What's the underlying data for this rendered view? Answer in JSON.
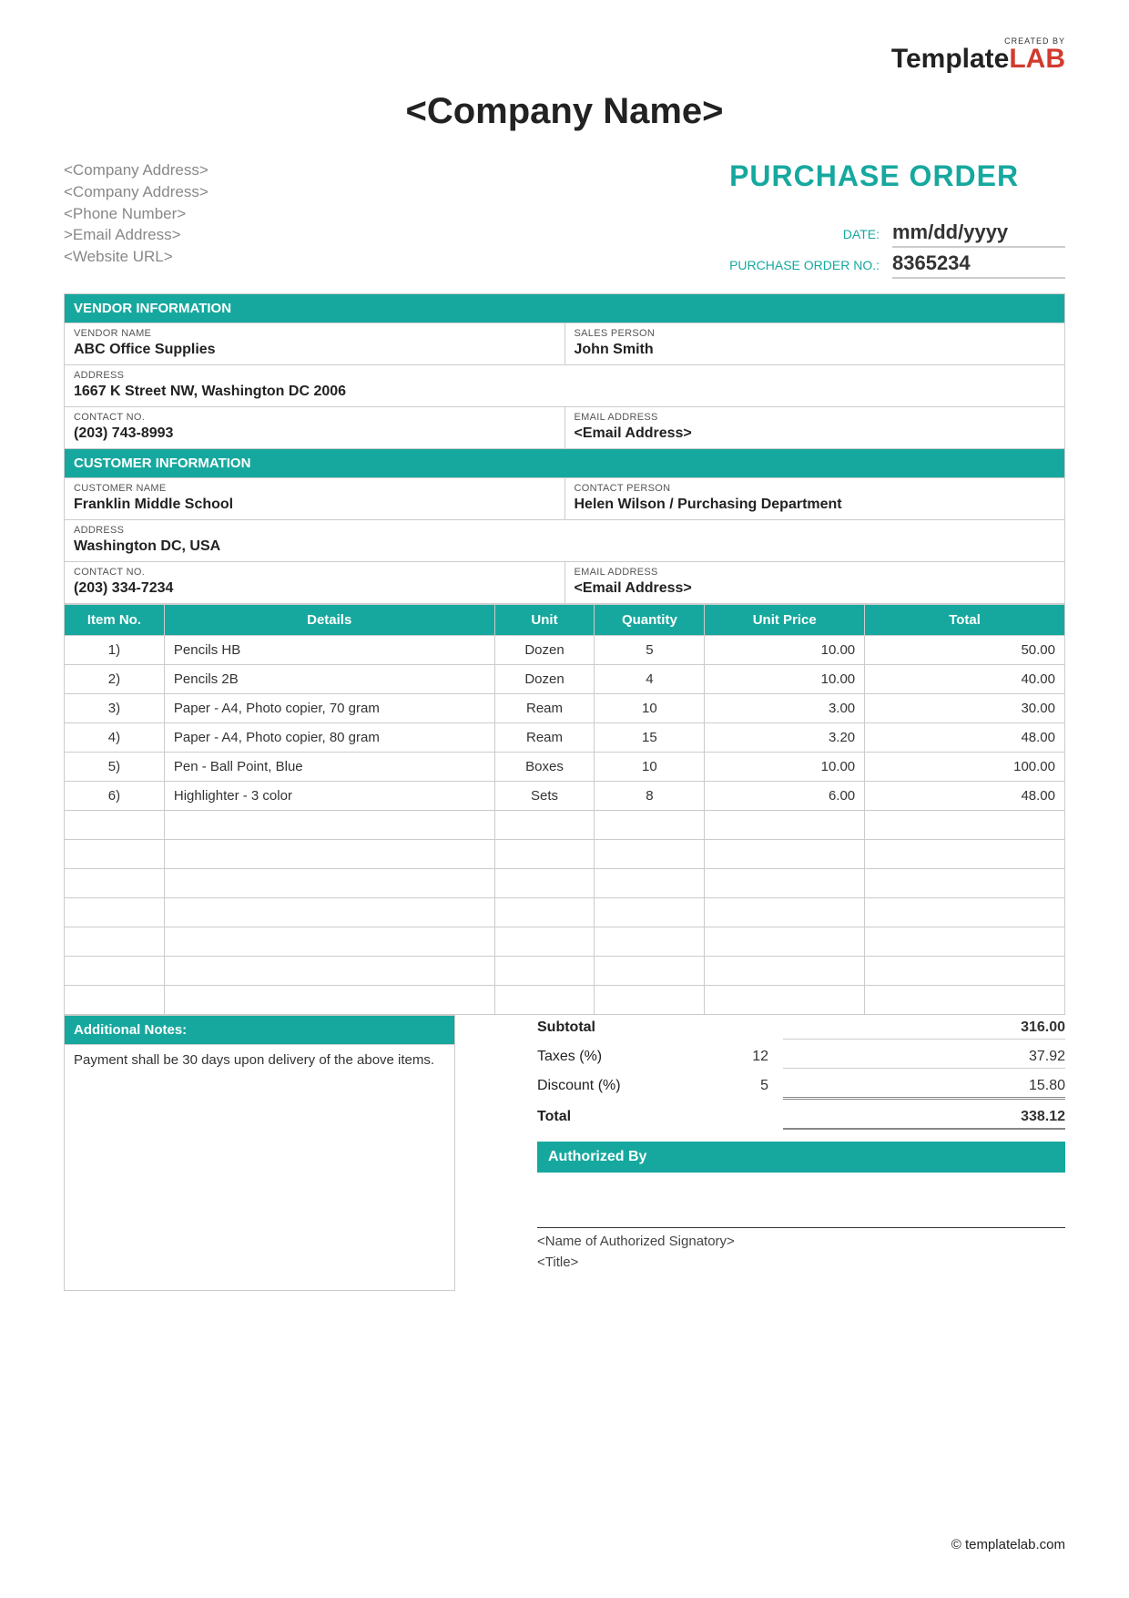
{
  "branding": {
    "created_by": "CREATED BY",
    "logo_text": "Template",
    "logo_accent": "LAB",
    "footer": "© templatelab.com"
  },
  "colors": {
    "accent": "#16a89e",
    "accent_logo": "#d13b2e",
    "border": "#cccccc",
    "text": "#333333",
    "muted": "#888888",
    "white": "#ffffff"
  },
  "header": {
    "company_name": "<Company Name>",
    "company_lines": [
      "<Company Address>",
      "<Company Address>",
      "<Phone Number>",
      ">Email Address>",
      "<Website URL>"
    ],
    "title": "PURCHASE ORDER",
    "date_label": "DATE:",
    "date_value": "mm/dd/yyyy",
    "po_no_label": "PURCHASE ORDER NO.:",
    "po_no_value": "8365234"
  },
  "vendor": {
    "section": "VENDOR INFORMATION",
    "name_label": "VENDOR NAME",
    "name": "ABC Office Supplies",
    "sales_label": "SALES PERSON",
    "sales": "John Smith",
    "address_label": "ADDRESS",
    "address": "1667 K Street NW, Washington DC   2006",
    "contact_label": "CONTACT NO.",
    "contact": "(203) 743-8993",
    "email_label": "EMAIL ADDRESS",
    "email": "<Email Address>"
  },
  "customer": {
    "section": "CUSTOMER INFORMATION",
    "name_label": "CUSTOMER NAME",
    "name": "Franklin Middle School",
    "contact_person_label": "CONTACT PERSON",
    "contact_person": "Helen Wilson / Purchasing Department",
    "address_label": "ADDRESS",
    "address": "Washington DC, USA",
    "contact_no_label": "CONTACT NO.",
    "contact_no": "(203) 334-7234",
    "email_label": "EMAIL ADDRESS",
    "email": "<Email Address>"
  },
  "items_table": {
    "columns": [
      "Item No.",
      "Details",
      "Unit",
      "Quantity",
      "Unit Price",
      "Total"
    ],
    "col_widths_pct": [
      10,
      33,
      10,
      11,
      16,
      20
    ],
    "rows": [
      {
        "no": "1)",
        "details": "Pencils HB",
        "unit": "Dozen",
        "qty": "5",
        "price": "10.00",
        "total": "50.00"
      },
      {
        "no": "2)",
        "details": "Pencils 2B",
        "unit": "Dozen",
        "qty": "4",
        "price": "10.00",
        "total": "40.00"
      },
      {
        "no": "3)",
        "details": "Paper - A4, Photo copier, 70 gram",
        "unit": "Ream",
        "qty": "10",
        "price": "3.00",
        "total": "30.00"
      },
      {
        "no": "4)",
        "details": "Paper - A4, Photo copier, 80 gram",
        "unit": "Ream",
        "qty": "15",
        "price": "3.20",
        "total": "48.00"
      },
      {
        "no": "5)",
        "details": "Pen - Ball Point, Blue",
        "unit": "Boxes",
        "qty": "10",
        "price": "10.00",
        "total": "100.00"
      },
      {
        "no": "6)",
        "details": "Highlighter - 3 color",
        "unit": "Sets",
        "qty": "8",
        "price": "6.00",
        "total": "48.00"
      }
    ],
    "empty_rows": 7
  },
  "notes": {
    "header": "Additional Notes:",
    "body": "Payment shall be 30 days upon delivery of the above items."
  },
  "summary": {
    "subtotal_label": "Subtotal",
    "subtotal": "316.00",
    "taxes_label": "Taxes (%)",
    "taxes_pct": "12",
    "taxes_val": "37.92",
    "discount_label": "Discount (%)",
    "discount_pct": "5",
    "discount_val": "15.80",
    "total_label": "Total",
    "total": "338.12",
    "auth_header": "Authorized By",
    "signatory": "<Name of Authorized Signatory>",
    "title": "<Title>"
  }
}
